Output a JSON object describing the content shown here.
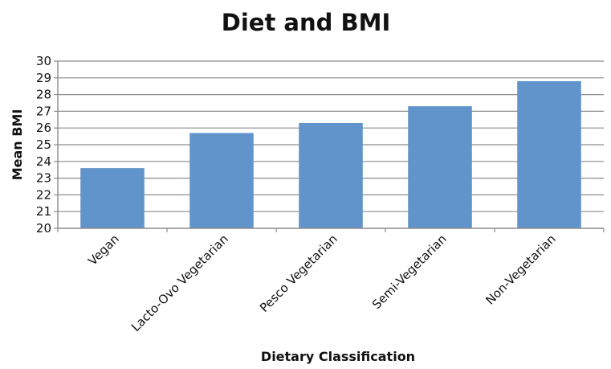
{
  "chart_data": {
    "type": "bar",
    "title": "Diet and BMI",
    "xlabel": "Dietary Classification",
    "ylabel": "Mean BMI",
    "categories": [
      "Vegan",
      "Lacto-Ovo Vegetarian",
      "Pesco Vegetarian",
      "Semi-Vegetarian",
      "Non-Vegetarian"
    ],
    "values": [
      23.6,
      25.7,
      26.3,
      27.3,
      28.8
    ],
    "ylim": [
      20,
      30
    ],
    "yticks": [
      20,
      21,
      22,
      23,
      24,
      25,
      26,
      27,
      28,
      29,
      30
    ],
    "grid": true,
    "legend": "none",
    "bar_color": "#6194cb"
  }
}
